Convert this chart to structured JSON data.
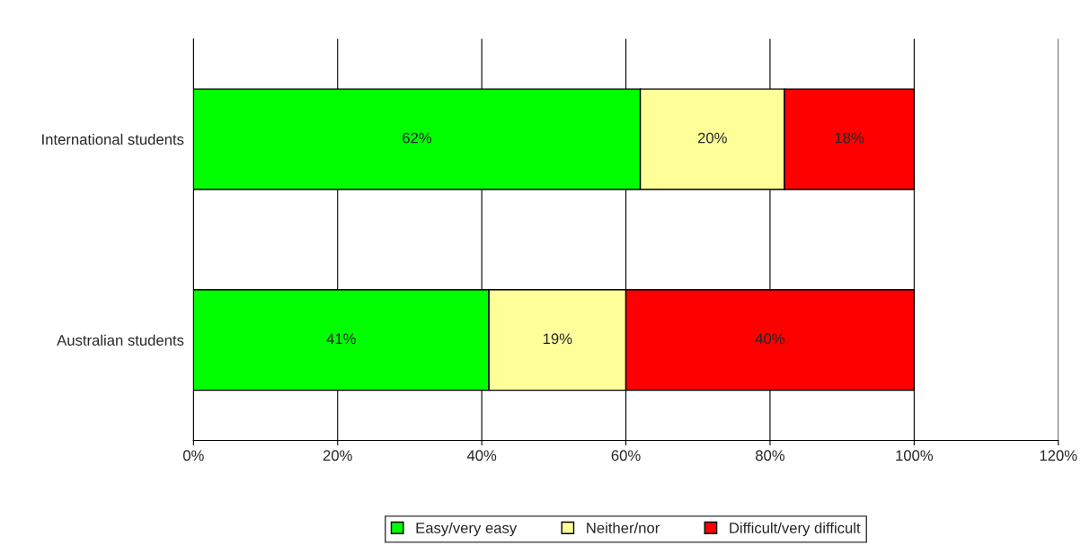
{
  "chart_data": {
    "type": "bar",
    "orientation": "horizontal",
    "stacked": true,
    "categories": [
      "International students",
      "Australian students"
    ],
    "series": [
      {
        "name": "Easy/very easy",
        "color": "#00ff00",
        "values": [
          62,
          41
        ],
        "value_labels": [
          "62%",
          "41%"
        ]
      },
      {
        "name": "Neither/nor",
        "color": "#ffff99",
        "values": [
          20,
          19
        ],
        "value_labels": [
          "20%",
          "19%"
        ]
      },
      {
        "name": "Difficult/very difficult",
        "color": "#ff0000",
        "values": [
          18,
          40
        ],
        "value_labels": [
          "18%",
          "40%"
        ]
      }
    ],
    "xlim": [
      0,
      120
    ],
    "xticks": [
      {
        "value": 0,
        "label": "0%"
      },
      {
        "value": 20,
        "label": "20%"
      },
      {
        "value": 40,
        "label": "40%"
      },
      {
        "value": 60,
        "label": "60%"
      },
      {
        "value": 80,
        "label": "80%"
      },
      {
        "value": 100,
        "label": "100%"
      },
      {
        "value": 120,
        "label": "120%"
      }
    ],
    "grid": "x",
    "legend": "bottom"
  }
}
